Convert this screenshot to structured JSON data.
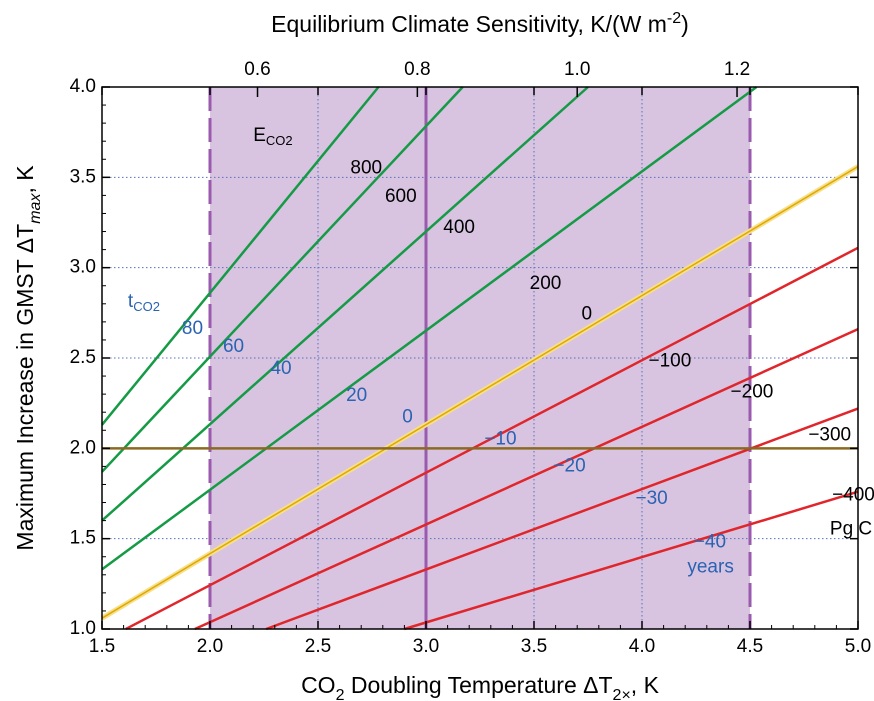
{
  "chart_data": {
    "type": "line",
    "title": "",
    "xlabel": {
      "main": "CO",
      "sub": "2",
      "rest": " Doubling Temperature ΔT",
      "sub2": "2×",
      "end": ", K"
    },
    "ylabel": {
      "main": "Maximum Increase in GMST ΔT",
      "sub": "max",
      "end": ", K"
    },
    "top_xlabel": {
      "main": "Equilibrium Climate Sensitivity, K/(W m",
      "sup": "-2",
      "end": ")"
    },
    "xlim": [
      1.5,
      5.0
    ],
    "ylim": [
      1.0,
      4.0
    ],
    "x_ticks": [
      "1.5",
      "2.0",
      "2.5",
      "3.0",
      "3.5",
      "4.0",
      "4.5",
      "5.0"
    ],
    "y_ticks": [
      "1.0",
      "1.5",
      "2.0",
      "2.5",
      "3.0",
      "3.5",
      "4.0"
    ],
    "top_ticks": [
      {
        "label": "0.6",
        "x": 2.22
      },
      {
        "label": "0.8",
        "x": 2.96
      },
      {
        "label": "1.0",
        "x": 3.7
      },
      {
        "label": "1.2",
        "x": 4.44
      }
    ],
    "grid_x": [
      2.5,
      3.5,
      4.0
    ],
    "grid_y": [
      1.5,
      2.5,
      3.0,
      3.5
    ],
    "shaded_range_x": [
      2.0,
      4.5
    ],
    "vertical_lines": [
      {
        "x": 2.0,
        "style": "dashed"
      },
      {
        "x": 3.0,
        "style": "solid"
      },
      {
        "x": 4.5,
        "style": "dashed"
      }
    ],
    "horizontal_line": {
      "y": 2.0
    },
    "series": [
      {
        "name": "800",
        "color": "#159a45",
        "x": [
          1.5,
          2.78
        ],
        "y": [
          2.13,
          4.0
        ]
      },
      {
        "name": "600",
        "color": "#159a45",
        "x": [
          1.5,
          3.17
        ],
        "y": [
          1.87,
          4.0
        ]
      },
      {
        "name": "400",
        "color": "#159a45",
        "x": [
          1.5,
          3.75
        ],
        "y": [
          1.6,
          4.0
        ]
      },
      {
        "name": "200",
        "color": "#159a45",
        "x": [
          1.5,
          4.53
        ],
        "y": [
          1.33,
          4.0
        ]
      },
      {
        "name": "0",
        "color": "#e8c21a",
        "x": [
          1.5,
          5.0
        ],
        "y": [
          1.06,
          3.56
        ]
      },
      {
        "name": "−100",
        "color": "#e0262b",
        "x": [
          1.61,
          5.0
        ],
        "y": [
          1.0,
          3.11
        ]
      },
      {
        "name": "−200",
        "color": "#e0262b",
        "x": [
          1.93,
          5.0
        ],
        "y": [
          1.0,
          2.66
        ]
      },
      {
        "name": "−300",
        "color": "#e0262b",
        "x": [
          2.26,
          5.0
        ],
        "y": [
          1.0,
          2.22
        ]
      },
      {
        "name": "−400",
        "color": "#e0262b",
        "x": [
          2.9,
          5.0
        ],
        "y": [
          1.0,
          1.76
        ]
      }
    ],
    "emission_labels": [
      {
        "text": "800",
        "x": 2.65,
        "y": 3.55
      },
      {
        "text": "600",
        "x": 2.81,
        "y": 3.39
      },
      {
        "text": "400",
        "x": 3.08,
        "y": 3.22
      },
      {
        "text": "200",
        "x": 3.48,
        "y": 2.91
      },
      {
        "text": "0",
        "x": 3.72,
        "y": 2.74
      },
      {
        "text": "−100",
        "x": 4.03,
        "y": 2.48
      },
      {
        "text": "−200",
        "x": 4.41,
        "y": 2.31
      },
      {
        "text": "−300",
        "x": 4.77,
        "y": 2.07
      },
      {
        "text": "−400",
        "x": 4.88,
        "y": 1.74
      },
      {
        "text": "Pg C",
        "x": 4.87,
        "y": 1.55
      }
    ],
    "emission_header": {
      "main": "E",
      "sub": "CO2",
      "x": 2.2,
      "y": 3.73
    },
    "time_labels": [
      {
        "text": "80",
        "x": 1.87,
        "y": 2.66
      },
      {
        "text": "60",
        "x": 2.06,
        "y": 2.56
      },
      {
        "text": "40",
        "x": 2.28,
        "y": 2.44
      },
      {
        "text": "20",
        "x": 2.63,
        "y": 2.29
      },
      {
        "text": "0",
        "x": 2.89,
        "y": 2.17
      },
      {
        "text": "−10",
        "x": 3.27,
        "y": 2.05
      },
      {
        "text": "−20",
        "x": 3.59,
        "y": 1.9
      },
      {
        "text": "−30",
        "x": 3.97,
        "y": 1.72
      },
      {
        "text": "−40",
        "x": 4.24,
        "y": 1.48
      },
      {
        "text": "years",
        "x": 4.21,
        "y": 1.34
      }
    ],
    "time_header": {
      "main": "t",
      "sub": "CO2",
      "x": 1.62,
      "y": 2.81
    },
    "colors": {
      "shade": "#d8c4e1",
      "purple_lines": "#9a5aae",
      "horizontal": "#8a6a22",
      "grid": "#5a70b8",
      "green": "#159a45",
      "red": "#e0262b",
      "yellow": "#e8c21a",
      "blue_text": "#2a63b2"
    }
  }
}
